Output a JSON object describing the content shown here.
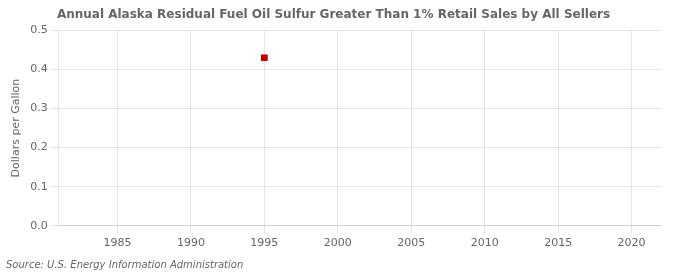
{
  "chart_data": {
    "type": "scatter",
    "title": "Annual Alaska Residual Fuel Oil Sulfur Greater Than 1% Retail Sales by All Sellers",
    "y_label": "Dollars per Gallon",
    "annotation": "Source: U.S. Energy Information Administration",
    "x": [
      1995
    ],
    "values": [
      0.43
    ],
    "color": "#c00000",
    "marker": "square",
    "xlim": [
      1981,
      2022
    ],
    "xticks": [
      1985,
      1990,
      1995,
      2000,
      2005,
      2010,
      2015,
      2020
    ],
    "ylim": [
      0,
      0.5
    ],
    "yticks": [
      {
        "value": 0,
        "label": "0.0"
      },
      0.1,
      0.2,
      0.3,
      0.4,
      0.5
    ],
    "grid": true
  }
}
